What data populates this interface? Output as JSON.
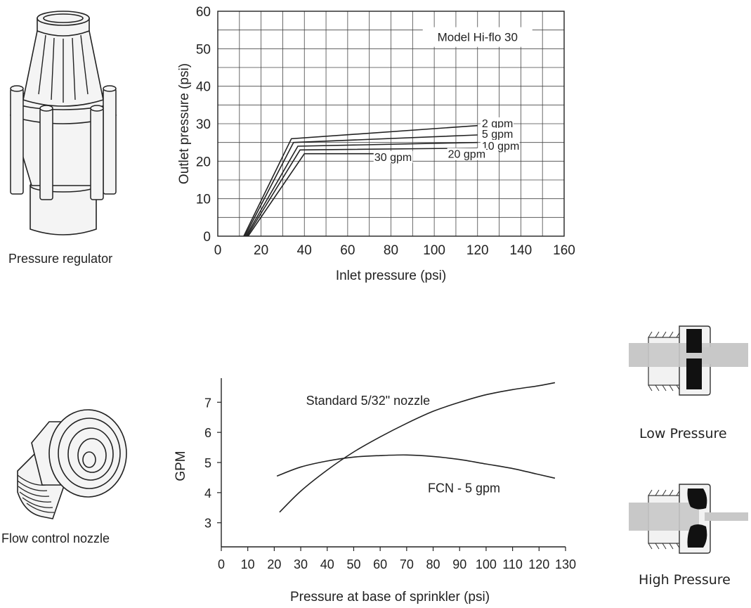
{
  "captions": {
    "pressure_regulator": "Pressure regulator",
    "flow_control_nozzle": "Flow control nozzle",
    "low_pressure": "Low Pressure",
    "high_pressure": "High Pressure"
  },
  "chart_data": [
    {
      "type": "line",
      "xlabel": "Inlet pressure (psi)",
      "ylabel": "Outlet pressure (psi)",
      "xlim": [
        0,
        160
      ],
      "ylim": [
        0,
        60
      ],
      "xticks": [
        "0",
        "20",
        "40",
        "60",
        "80",
        "100",
        "120",
        "140",
        "160"
      ],
      "yticks": [
        "0",
        "10",
        "20",
        "30",
        "40",
        "50",
        "60"
      ],
      "grid": true,
      "annotation": "Model Hi-flo 30",
      "series": [
        {
          "name": "2 gpm",
          "label": "2 gpm",
          "x": [
            12,
            34,
            120
          ],
          "y": [
            0,
            26,
            29.5
          ]
        },
        {
          "name": "5 gpm",
          "label": "5 gpm",
          "x": [
            12.5,
            35,
            120
          ],
          "y": [
            0,
            25,
            27
          ]
        },
        {
          "name": "10 gpm",
          "label": "10 gpm",
          "x": [
            13,
            37,
            120
          ],
          "y": [
            0,
            24,
            25
          ]
        },
        {
          "name": "20 gpm",
          "label": "20 gpm",
          "x": [
            13.5,
            38,
            120
          ],
          "y": [
            0,
            23,
            23.5
          ]
        },
        {
          "name": "30 gpm",
          "label": "30 gpm",
          "x": [
            14,
            40,
            80
          ],
          "y": [
            0,
            22,
            22
          ]
        }
      ]
    },
    {
      "type": "line",
      "xlabel": "Pressure at base of sprinkler (psi)",
      "ylabel": "GPM",
      "xlim": [
        0,
        130
      ],
      "ylim": [
        2.2,
        7.8
      ],
      "xticks": [
        "0",
        "10",
        "20",
        "30",
        "40",
        "50",
        "60",
        "70",
        "80",
        "90",
        "100",
        "110",
        "120",
        "130"
      ],
      "yticks": [
        "3",
        "4",
        "5",
        "6",
        "7"
      ],
      "grid": false,
      "series": [
        {
          "name": "Standard 5/32\" nozzle",
          "label": "Standard 5/32\" nozzle",
          "x": [
            22,
            30,
            40,
            50,
            60,
            70,
            80,
            90,
            100,
            110,
            120,
            126
          ],
          "y": [
            3.35,
            4.05,
            4.75,
            5.35,
            5.85,
            6.3,
            6.7,
            7.0,
            7.25,
            7.42,
            7.55,
            7.65
          ]
        },
        {
          "name": "FCN - 5 gpm",
          "label": "FCN - 5 gpm",
          "x": [
            21,
            30,
            40,
            50,
            60,
            70,
            80,
            90,
            100,
            110,
            120,
            126
          ],
          "y": [
            4.55,
            4.85,
            5.05,
            5.18,
            5.23,
            5.25,
            5.2,
            5.1,
            4.95,
            4.8,
            4.6,
            4.48
          ]
        }
      ]
    }
  ]
}
